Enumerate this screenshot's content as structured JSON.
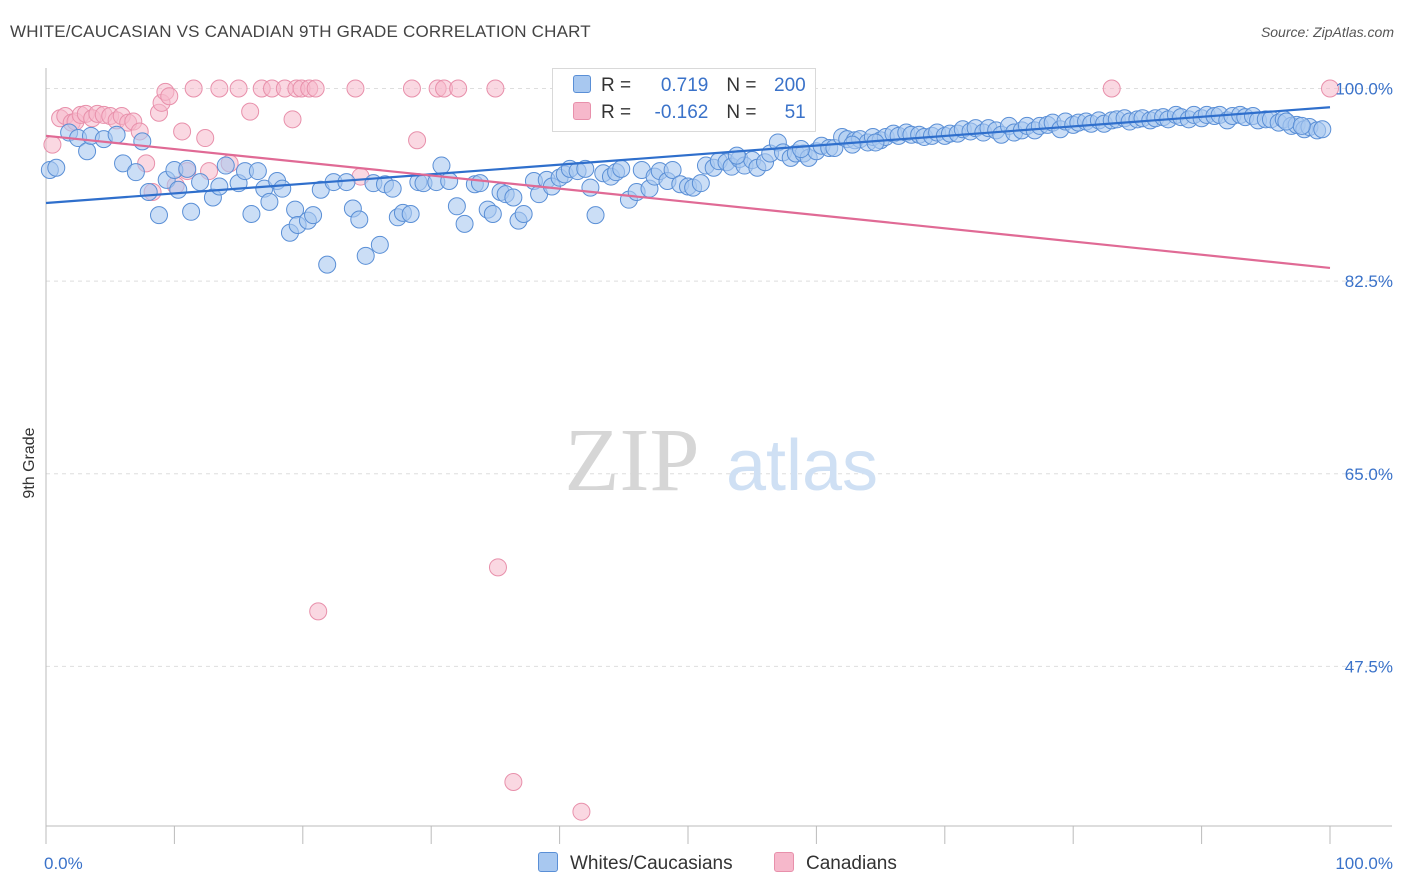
{
  "title": "WHITE/CAUCASIAN VS CANADIAN 9TH GRADE CORRELATION CHART",
  "source": "Source: ZipAtlas.com",
  "watermark": {
    "zip": "ZIP",
    "atlas": "atlas"
  },
  "legend": {
    "rows": [
      {
        "r_label": "R = ",
        "r_value": "0.719",
        "n_label": "N = ",
        "n_value": "200",
        "color": "#a8c8f0"
      },
      {
        "r_label": "R = ",
        "r_value": "-0.162",
        "n_label": "N = ",
        "n_value": "51",
        "color": "#f6b8cb"
      }
    ]
  },
  "bottom_legend": [
    {
      "label": "Whites/Caucasians",
      "color": "#a8c8f0"
    },
    {
      "label": "Canadians",
      "color": "#f6b8cb"
    }
  ],
  "chart_data": {
    "type": "scatter",
    "title": "WHITE/CAUCASIAN VS CANADIAN 9TH GRADE CORRELATION CHART",
    "xlabel": "",
    "ylabel": "9th Grade",
    "xlim": [
      0,
      100
    ],
    "ylim": [
      33,
      101.5
    ],
    "x_tick_labels": [
      "0.0%",
      "100.0%"
    ],
    "y_ticks": [
      100.0,
      82.5,
      65.0,
      47.5
    ],
    "y_tick_labels": [
      "100.0%",
      "82.5%",
      "65.0%",
      "47.5%"
    ],
    "grid": true,
    "colors": {
      "blue_fill": "#a8c8f0",
      "blue_edge": "#5a8fd6",
      "blue_line": "#2f6fcc",
      "pink_fill": "#f6b8cb",
      "pink_edge": "#e890ab",
      "pink_line": "#e06a95",
      "tick_text": "#3a72c9"
    },
    "series": [
      {
        "name": "Whites/Caucasians",
        "trend": [
          [
            0,
            89.6
          ],
          [
            100,
            98.3
          ]
        ],
        "points": [
          [
            0.3,
            92.6
          ],
          [
            0.8,
            92.8
          ],
          [
            1.8,
            96.0
          ],
          [
            2.5,
            95.5
          ],
          [
            3.2,
            94.3
          ],
          [
            3.5,
            95.7
          ],
          [
            4.5,
            95.4
          ],
          [
            5.5,
            95.8
          ],
          [
            6,
            93.2
          ],
          [
            7,
            92.4
          ],
          [
            7.5,
            95.2
          ],
          [
            8,
            90.6
          ],
          [
            8.8,
            88.5
          ],
          [
            9.4,
            91.7
          ],
          [
            10,
            92.6
          ],
          [
            10.3,
            90.8
          ],
          [
            11,
            92.7
          ],
          [
            11.3,
            88.8
          ],
          [
            12,
            91.5
          ],
          [
            13,
            90.1
          ],
          [
            13.5,
            91.1
          ],
          [
            14,
            93.0
          ],
          [
            15,
            91.4
          ],
          [
            15.5,
            92.5
          ],
          [
            16,
            88.6
          ],
          [
            16.5,
            92.5
          ],
          [
            17,
            90.9
          ],
          [
            17.4,
            89.7
          ],
          [
            18,
            91.6
          ],
          [
            18.4,
            90.9
          ],
          [
            19,
            86.9
          ],
          [
            19.4,
            89.0
          ],
          [
            19.6,
            87.6
          ],
          [
            20.4,
            88.0
          ],
          [
            20.8,
            88.5
          ],
          [
            21.4,
            90.8
          ],
          [
            21.9,
            84.0
          ],
          [
            22.4,
            91.5
          ],
          [
            23.4,
            91.5
          ],
          [
            23.9,
            89.1
          ],
          [
            24.4,
            88.1
          ],
          [
            24.9,
            84.8
          ],
          [
            25.5,
            91.4
          ],
          [
            26,
            85.8
          ],
          [
            26.4,
            91.3
          ],
          [
            27,
            90.9
          ],
          [
            27.4,
            88.3
          ],
          [
            27.8,
            88.7
          ],
          [
            28.4,
            88.6
          ],
          [
            29,
            91.5
          ],
          [
            29.4,
            91.4
          ],
          [
            30.4,
            91.5
          ],
          [
            30.8,
            93.0
          ],
          [
            31.4,
            91.6
          ],
          [
            32,
            89.3
          ],
          [
            32.6,
            87.7
          ],
          [
            33.4,
            91.3
          ],
          [
            33.8,
            91.4
          ],
          [
            34.4,
            89.0
          ],
          [
            34.8,
            88.6
          ],
          [
            35.4,
            90.6
          ],
          [
            35.8,
            90.4
          ],
          [
            36.4,
            90.1
          ],
          [
            36.8,
            88.0
          ],
          [
            37.2,
            88.6
          ],
          [
            38.0,
            91.6
          ],
          [
            38.4,
            90.4
          ],
          [
            39,
            91.7
          ],
          [
            39.4,
            91.1
          ],
          [
            40,
            91.9
          ],
          [
            40.4,
            92.2
          ],
          [
            40.8,
            92.7
          ],
          [
            41.4,
            92.5
          ],
          [
            42,
            92.7
          ],
          [
            42.4,
            91.0
          ],
          [
            42.8,
            88.5
          ],
          [
            43.4,
            92.3
          ],
          [
            44,
            92.0
          ],
          [
            44.4,
            92.4
          ],
          [
            44.8,
            92.7
          ],
          [
            45.4,
            89.9
          ],
          [
            46,
            90.6
          ],
          [
            46.4,
            92.6
          ],
          [
            47,
            90.9
          ],
          [
            47.4,
            92.0
          ],
          [
            47.8,
            92.5
          ],
          [
            48.4,
            91.6
          ],
          [
            48.8,
            92.6
          ],
          [
            49.4,
            91.3
          ],
          [
            50,
            91.1
          ],
          [
            50.4,
            91.0
          ],
          [
            51,
            91.4
          ],
          [
            51.4,
            93.0
          ],
          [
            52,
            92.8
          ],
          [
            52.4,
            93.4
          ],
          [
            53,
            93.3
          ],
          [
            53.4,
            92.9
          ],
          [
            54,
            93.6
          ],
          [
            54.4,
            93.0
          ],
          [
            55,
            93.5
          ],
          [
            55.4,
            92.8
          ],
          [
            56,
            93.3
          ],
          [
            56.4,
            94.1
          ],
          [
            57,
            95.1
          ],
          [
            57.4,
            94.2
          ],
          [
            58,
            93.7
          ],
          [
            58.4,
            94.1
          ],
          [
            59,
            94.1
          ],
          [
            59.4,
            93.7
          ],
          [
            60,
            94.3
          ],
          [
            60.4,
            94.8
          ],
          [
            61,
            94.6
          ],
          [
            61.4,
            94.6
          ],
          [
            62,
            95.6
          ],
          [
            62.4,
            95.4
          ],
          [
            63,
            95.3
          ],
          [
            63.4,
            95.4
          ],
          [
            64,
            95.1
          ],
          [
            64.4,
            95.6
          ],
          [
            65,
            95.3
          ],
          [
            65.4,
            95.6
          ],
          [
            66,
            95.9
          ],
          [
            66.4,
            95.7
          ],
          [
            67,
            96.0
          ],
          [
            67.4,
            95.8
          ],
          [
            68,
            95.8
          ],
          [
            68.4,
            95.6
          ],
          [
            69,
            95.7
          ],
          [
            69.4,
            96.0
          ],
          [
            70,
            95.7
          ],
          [
            70.4,
            95.9
          ],
          [
            71,
            95.9
          ],
          [
            71.4,
            96.3
          ],
          [
            72,
            96.1
          ],
          [
            72.4,
            96.4
          ],
          [
            73,
            96.0
          ],
          [
            73.4,
            96.4
          ],
          [
            74,
            96.2
          ],
          [
            74.4,
            95.8
          ],
          [
            75,
            96.6
          ],
          [
            75.4,
            96.0
          ],
          [
            76,
            96.2
          ],
          [
            76.4,
            96.6
          ],
          [
            77,
            96.2
          ],
          [
            77.4,
            96.6
          ],
          [
            78,
            96.7
          ],
          [
            78.4,
            96.9
          ],
          [
            79,
            96.3
          ],
          [
            79.4,
            97.0
          ],
          [
            80,
            96.7
          ],
          [
            80.4,
            96.9
          ],
          [
            81,
            97.0
          ],
          [
            81.4,
            96.8
          ],
          [
            82,
            97.1
          ],
          [
            82.4,
            96.8
          ],
          [
            83,
            97.1
          ],
          [
            83.4,
            97.2
          ],
          [
            84,
            97.3
          ],
          [
            84.4,
            97.0
          ],
          [
            85,
            97.2
          ],
          [
            85.4,
            97.3
          ],
          [
            86,
            97.1
          ],
          [
            86.4,
            97.3
          ],
          [
            87,
            97.4
          ],
          [
            87.4,
            97.2
          ],
          [
            88,
            97.6
          ],
          [
            88.4,
            97.4
          ],
          [
            89,
            97.2
          ],
          [
            89.4,
            97.6
          ],
          [
            90,
            97.3
          ],
          [
            90.4,
            97.6
          ],
          [
            91,
            97.5
          ],
          [
            91.4,
            97.6
          ],
          [
            92,
            97.1
          ],
          [
            92.4,
            97.5
          ],
          [
            93,
            97.6
          ],
          [
            93.4,
            97.4
          ],
          [
            94,
            97.5
          ],
          [
            94.4,
            97.1
          ],
          [
            95,
            97.2
          ],
          [
            95.4,
            97.2
          ],
          [
            96,
            96.9
          ],
          [
            96.4,
            97.2
          ],
          [
            97,
            96.6
          ],
          [
            97.4,
            96.7
          ],
          [
            98,
            96.3
          ],
          [
            98.4,
            96.5
          ],
          [
            99,
            96.2
          ],
          [
            99.4,
            96.3
          ],
          [
            96.6,
            97.0
          ],
          [
            97.8,
            96.6
          ],
          [
            64.6,
            95.1
          ],
          [
            62.8,
            94.9
          ],
          [
            58.8,
            94.5
          ],
          [
            53.8,
            93.9
          ]
        ]
      },
      {
        "name": "Canadians",
        "trend": [
          [
            0,
            95.7
          ],
          [
            100,
            83.7
          ]
        ],
        "points": [
          [
            0.5,
            94.9
          ],
          [
            1.1,
            97.3
          ],
          [
            1.5,
            97.5
          ],
          [
            2.0,
            96.9
          ],
          [
            2.3,
            97.0
          ],
          [
            2.7,
            97.6
          ],
          [
            3.1,
            97.7
          ],
          [
            3.6,
            97.3
          ],
          [
            4.0,
            97.7
          ],
          [
            4.5,
            97.6
          ],
          [
            5.0,
            97.5
          ],
          [
            5.5,
            97.1
          ],
          [
            5.9,
            97.5
          ],
          [
            6.4,
            96.9
          ],
          [
            6.8,
            97.0
          ],
          [
            7.3,
            96.1
          ],
          [
            7.8,
            93.2
          ],
          [
            8.3,
            90.6
          ],
          [
            8.8,
            97.8
          ],
          [
            9.0,
            98.7
          ],
          [
            9.3,
            99.7
          ],
          [
            9.6,
            99.3
          ],
          [
            10.1,
            91.2
          ],
          [
            10.6,
            96.1
          ],
          [
            11.0,
            92.5
          ],
          [
            11.5,
            100.0
          ],
          [
            12.4,
            95.5
          ],
          [
            12.7,
            92.5
          ],
          [
            13.5,
            100.0
          ],
          [
            14.3,
            93.2
          ],
          [
            15,
            100.0
          ],
          [
            15.9,
            97.9
          ],
          [
            16.8,
            100.0
          ],
          [
            17.6,
            100.0
          ],
          [
            18.6,
            100.0
          ],
          [
            19.2,
            97.2
          ],
          [
            19.5,
            100.0
          ],
          [
            19.9,
            100.0
          ],
          [
            20.5,
            100.0
          ],
          [
            21.0,
            100.0
          ],
          [
            21.2,
            52.5
          ],
          [
            24.1,
            100.0
          ],
          [
            24.5,
            92.0
          ],
          [
            28.5,
            100.0
          ],
          [
            28.9,
            95.3
          ],
          [
            30.5,
            100.0
          ],
          [
            31.0,
            100.0
          ],
          [
            32.1,
            100.0
          ],
          [
            35.0,
            100.0
          ],
          [
            35.2,
            56.5
          ],
          [
            36.4,
            37.0
          ],
          [
            40.5,
            100.0
          ],
          [
            41.7,
            34.3
          ],
          [
            83.0,
            100.0
          ],
          [
            100,
            100.0
          ]
        ]
      }
    ]
  }
}
